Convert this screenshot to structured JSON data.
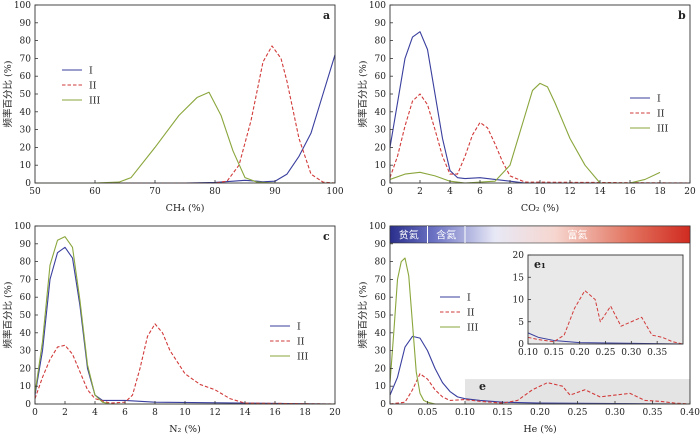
{
  "chart_data": [
    {
      "panel": "a",
      "type": "line",
      "xlabel": "CH₄ (%)",
      "ylabel": "频率百分比 (%)",
      "xlim": [
        50,
        100
      ],
      "ylim": [
        0,
        100
      ],
      "xticks": [
        50,
        60,
        70,
        80,
        90,
        100
      ],
      "yticks": [
        0,
        10,
        20,
        30,
        40,
        50,
        60,
        70,
        80,
        90,
        100
      ],
      "legend_placement": "left",
      "series": [
        {
          "name": "I",
          "color": "#3a3f9e",
          "dash": "solid",
          "x": [
            50,
            75,
            80,
            83,
            85,
            87,
            88,
            90,
            92,
            94,
            96,
            98,
            100
          ],
          "y": [
            0,
            0,
            0.3,
            1,
            1.5,
            1,
            0.7,
            1,
            5,
            15,
            28,
            50,
            72
          ]
        },
        {
          "name": "II",
          "color": "#d23b3b",
          "dash": "dashed",
          "x": [
            50,
            80,
            82,
            84,
            86,
            88,
            89.5,
            91,
            92,
            94,
            96,
            98,
            100
          ],
          "y": [
            0,
            0,
            1,
            10,
            35,
            68,
            77,
            70,
            57,
            25,
            5,
            0.5,
            0
          ]
        },
        {
          "name": "III",
          "color": "#8aa63c",
          "dash": "solid",
          "x": [
            50,
            60,
            64,
            66,
            70,
            74,
            77,
            79,
            81,
            83,
            85,
            87,
            90,
            100
          ],
          "y": [
            0,
            0,
            0.5,
            3,
            20,
            38,
            48,
            51,
            38,
            18,
            3,
            0.5,
            0,
            0
          ]
        }
      ]
    },
    {
      "panel": "b",
      "type": "line",
      "xlabel": "CO₂ (%)",
      "ylabel": "频率百分比 (%)",
      "xlim": [
        0,
        20
      ],
      "ylim": [
        0,
        100
      ],
      "xticks": [
        0,
        2,
        4,
        6,
        8,
        10,
        12,
        14,
        16,
        18,
        20
      ],
      "yticks": [
        0,
        10,
        20,
        30,
        40,
        50,
        60,
        70,
        80,
        90,
        100
      ],
      "legend_placement": "right",
      "series": [
        {
          "name": "I",
          "color": "#3a3f9e",
          "dash": "solid",
          "x": [
            0,
            0.5,
            1,
            1.5,
            2,
            2.5,
            3,
            3.5,
            4,
            4.5,
            5,
            6,
            7,
            8,
            9,
            20
          ],
          "y": [
            20,
            45,
            70,
            82,
            85,
            75,
            50,
            25,
            7,
            3,
            2.5,
            3,
            2,
            1,
            0,
            0
          ]
        },
        {
          "name": "II",
          "color": "#d23b3b",
          "dash": "dashed",
          "x": [
            0,
            0.5,
            1,
            1.5,
            2,
            2.5,
            3,
            3.5,
            4,
            4.5,
            5,
            5.5,
            6,
            6.5,
            7,
            7.5,
            8,
            9,
            20
          ],
          "y": [
            3,
            15,
            32,
            46,
            50,
            44,
            30,
            15,
            5,
            5,
            15,
            27,
            34,
            31,
            22,
            12,
            4,
            0.5,
            0
          ]
        },
        {
          "name": "III",
          "color": "#8aa63c",
          "dash": "solid",
          "x": [
            0,
            1,
            2,
            3,
            4,
            5,
            7,
            8,
            9,
            9.5,
            10,
            10.5,
            11,
            12,
            13,
            14,
            16,
            17,
            18
          ],
          "y": [
            2,
            5,
            6,
            4,
            1,
            0,
            1,
            10,
            38,
            52,
            56,
            54,
            45,
            25,
            10,
            0,
            0,
            2,
            6
          ]
        }
      ]
    },
    {
      "panel": "c",
      "type": "line",
      "xlabel": "N₂ (%)",
      "ylabel": "频率百分比 (%)",
      "xlim": [
        0,
        20
      ],
      "ylim": [
        0,
        100
      ],
      "xticks": [
        0,
        2,
        4,
        6,
        8,
        10,
        12,
        14,
        16,
        18,
        20
      ],
      "yticks": [
        0,
        10,
        20,
        30,
        40,
        50,
        60,
        70,
        80,
        90,
        100
      ],
      "legend_placement": "right",
      "series": [
        {
          "name": "I",
          "color": "#3a3f9e",
          "dash": "solid",
          "x": [
            0,
            0.5,
            1,
            1.5,
            2,
            2.5,
            3,
            3.5,
            4,
            4.5,
            5,
            6,
            8,
            20
          ],
          "y": [
            5,
            30,
            70,
            85,
            88,
            82,
            55,
            20,
            5,
            2,
            2,
            2,
            1,
            0
          ]
        },
        {
          "name": "II",
          "color": "#d23b3b",
          "dash": "dashed",
          "x": [
            0,
            0.5,
            1,
            1.5,
            2,
            2.5,
            3,
            3.5,
            4,
            5,
            6,
            6.5,
            7,
            7.5,
            8,
            8.5,
            9,
            10,
            11,
            12,
            13,
            14,
            20
          ],
          "y": [
            3,
            15,
            25,
            32,
            33,
            28,
            18,
            8,
            3,
            0.5,
            1,
            5,
            20,
            38,
            45,
            40,
            30,
            17,
            11,
            8,
            3,
            0.5,
            0
          ]
        },
        {
          "name": "III",
          "color": "#8aa63c",
          "dash": "solid",
          "x": [
            0,
            0.5,
            1,
            1.5,
            2,
            2.5,
            3,
            3.5,
            4,
            4.5,
            5,
            20
          ],
          "y": [
            6,
            35,
            78,
            92,
            94,
            88,
            58,
            22,
            5,
            1,
            0,
            0
          ]
        }
      ]
    },
    {
      "panel": "d",
      "type": "line",
      "xlabel": "He (%)",
      "ylabel": "频率百分比 (%)",
      "xlim": [
        0,
        0.4
      ],
      "ylim": [
        0,
        100
      ],
      "xticks": [
        0,
        0.05,
        0.1,
        0.15,
        0.2,
        0.25,
        0.3,
        0.35,
        0.4
      ],
      "xtick_labels": [
        "0",
        "0.05",
        "0.10",
        "0.15",
        "0.20",
        "0.25",
        "0.30",
        "0.35",
        "0.40"
      ],
      "yticks": [
        0,
        10,
        20,
        30,
        40,
        50,
        60,
        70,
        80,
        90,
        100
      ],
      "legend_placement": "middle",
      "band": {
        "labels": [
          "贫氦",
          "含氦",
          "富氦"
        ],
        "boundaries": [
          0.05,
          0.1
        ]
      },
      "highlight_label": "e",
      "highlight_range": {
        "x": [
          0.1,
          0.4
        ],
        "y": [
          0,
          14
        ]
      },
      "series": [
        {
          "name": "I",
          "color": "#3a3f9e",
          "dash": "solid",
          "x": [
            0,
            0.01,
            0.02,
            0.03,
            0.04,
            0.05,
            0.06,
            0.07,
            0.08,
            0.09,
            0.1,
            0.12,
            0.15,
            0.2,
            0.4
          ],
          "y": [
            5,
            15,
            32,
            38,
            37,
            30,
            20,
            12,
            7,
            4,
            3,
            2,
            1,
            0.5,
            0
          ]
        },
        {
          "name": "II",
          "color": "#d23b3b",
          "dash": "dashed",
          "x": [
            0,
            0.02,
            0.03,
            0.04,
            0.05,
            0.06,
            0.07,
            0.08,
            0.1,
            0.12,
            0.15,
            0.17,
            0.19,
            0.21,
            0.23,
            0.24,
            0.26,
            0.28,
            0.3,
            0.32,
            0.34,
            0.36,
            0.38,
            0.4
          ],
          "y": [
            0,
            1,
            8,
            17,
            14,
            8,
            4,
            2,
            2.5,
            1.5,
            0.5,
            2,
            8,
            12,
            10,
            5,
            8,
            4,
            5,
            6,
            2,
            1.5,
            0.5,
            0
          ]
        },
        {
          "name": "III",
          "color": "#8aa63c",
          "dash": "solid",
          "x": [
            0,
            0.005,
            0.01,
            0.015,
            0.02,
            0.025,
            0.03,
            0.035,
            0.04,
            0.045,
            0.05,
            0.06,
            0.4
          ],
          "y": [
            12,
            40,
            70,
            80,
            82,
            72,
            45,
            18,
            6,
            2,
            1,
            0,
            0
          ]
        }
      ]
    },
    {
      "panel": "e₁",
      "type": "line",
      "inset_of": "d",
      "xlim": [
        0.1,
        0.4
      ],
      "ylim": [
        0,
        20
      ],
      "xticks": [
        0.1,
        0.15,
        0.2,
        0.25,
        0.3,
        0.35
      ],
      "xtick_labels": [
        "0.10",
        "0.15",
        "0.20",
        "0.25",
        "0.30",
        "0.35"
      ],
      "yticks": [
        0,
        5,
        10,
        15,
        20
      ],
      "series": [
        {
          "name": "I",
          "color": "#3a3f9e",
          "dash": "solid",
          "x": [
            0.1,
            0.12,
            0.15,
            0.2,
            0.4
          ],
          "y": [
            2.5,
            1.5,
            0.8,
            0.3,
            0
          ]
        },
        {
          "name": "II",
          "color": "#d23b3b",
          "dash": "dashed",
          "x": [
            0.1,
            0.12,
            0.15,
            0.17,
            0.19,
            0.21,
            0.23,
            0.24,
            0.26,
            0.28,
            0.3,
            0.32,
            0.34,
            0.36,
            0.38,
            0.4
          ],
          "y": [
            1.5,
            1,
            0.5,
            2,
            8,
            12,
            10,
            5,
            8.5,
            4,
            5,
            6,
            2,
            1.5,
            0.5,
            0
          ]
        }
      ]
    }
  ]
}
